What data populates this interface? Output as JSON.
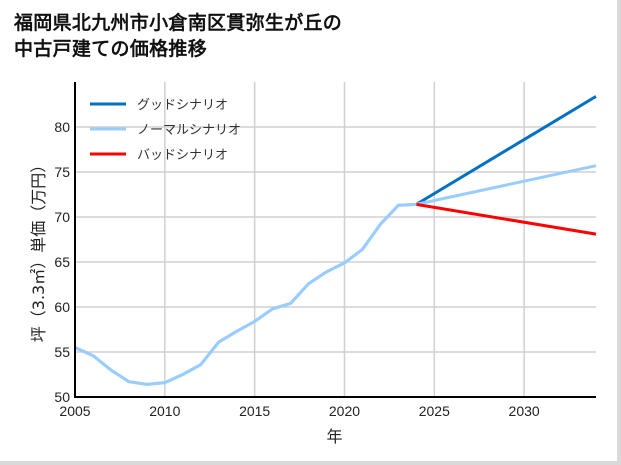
{
  "title": {
    "line1": "福岡県北九州市小倉南区貫弥生が丘の",
    "line2": "中古戸建ての価格推移"
  },
  "chart_data": {
    "type": "line",
    "title": "福岡県北九州市小倉南区貫弥生が丘の中古戸建ての価格推移",
    "xlabel": "年",
    "ylabel": "坪（3.3㎡）単価（万円）",
    "xlim": [
      2005,
      2034
    ],
    "ylim": [
      50,
      85
    ],
    "xticks": [
      2005,
      2010,
      2015,
      2020,
      2025,
      2030
    ],
    "yticks": [
      50,
      55,
      60,
      65,
      70,
      75,
      80
    ],
    "grid": true,
    "legend_position": "upper left",
    "series": [
      {
        "name": "グッドシナリオ",
        "color": "#0070c0",
        "x": [
          2024,
          2034
        ],
        "values": [
          71.4,
          83.4
        ]
      },
      {
        "name": "ノーマルシナリオ",
        "color": "#99ccff",
        "x": [
          2005,
          2006,
          2007,
          2008,
          2009,
          2010,
          2011,
          2012,
          2013,
          2014,
          2015,
          2016,
          2017,
          2018,
          2019,
          2020,
          2021,
          2022,
          2023,
          2024,
          2034
        ],
        "values": [
          55.5,
          54.6,
          53.0,
          51.7,
          51.4,
          51.6,
          52.5,
          53.6,
          56.1,
          57.3,
          58.4,
          59.8,
          60.4,
          62.6,
          63.9,
          64.9,
          66.4,
          69.2,
          71.3,
          71.4,
          75.7
        ]
      },
      {
        "name": "バッドシナリオ",
        "color": "#ff0000",
        "x": [
          2024,
          2034
        ],
        "values": [
          71.4,
          68.1
        ]
      }
    ]
  }
}
